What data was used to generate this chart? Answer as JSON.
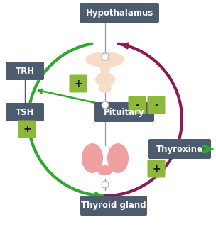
{
  "bg_color": "#ffffff",
  "box_color": "#4d5b6e",
  "green_color": "#2ea82e",
  "dark_red_color": "#8b1a55",
  "sign_box_color": "#8db83a",
  "hypo_color": "#f5ddc8",
  "thyroid_color": "#f0a0a0",
  "labels": {
    "hypothalamus": "Hypothalamus",
    "trh": "TRH",
    "tsh": "TSH",
    "pituitary": "Pituitary",
    "thyroid": "Thyroid gland",
    "thyroxine": "Thyroxine"
  }
}
